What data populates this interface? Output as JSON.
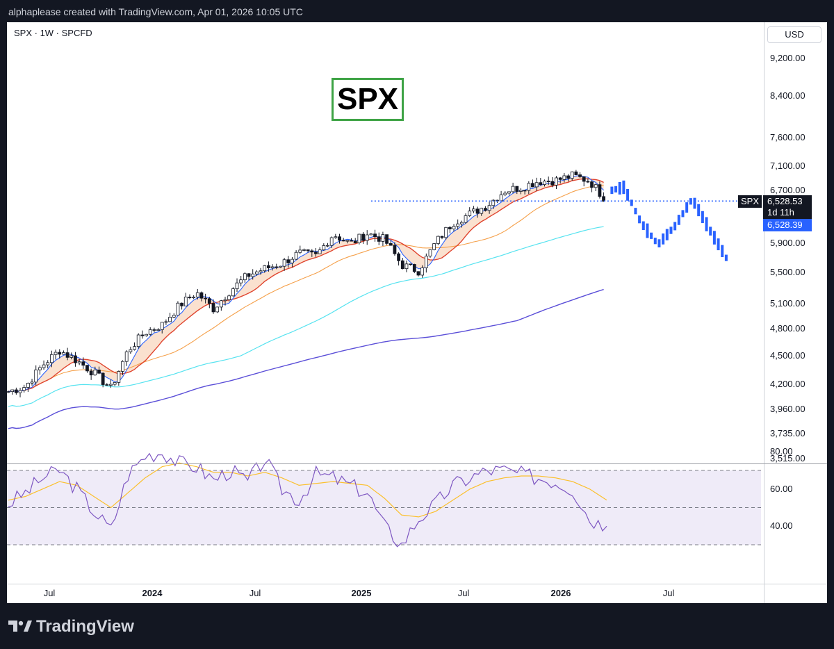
{
  "header": {
    "caption": "alphaplease created with TradingView.com, Apr 01, 2026 10:05 UTC"
  },
  "chart_header": {
    "symbol": "SPX · 1W · SPCFD",
    "currency": "USD"
  },
  "overlay_title": "SPX",
  "price_axis": [
    "9,200.00",
    "8,400.00",
    "7,600.00",
    "7,100.00",
    "6,700.00",
    "5,900.00",
    "5,500.00",
    "5,100.00",
    "4,800.00",
    "4,500.00",
    "4,200.00",
    "3,960.00",
    "3,735.00",
    "3,515.00"
  ],
  "rsi_axis": [
    "80.00",
    "60.00",
    "40.00"
  ],
  "time_axis": [
    {
      "label": "Jul",
      "bold": false
    },
    {
      "label": "2024",
      "bold": true
    },
    {
      "label": "Jul",
      "bold": false
    },
    {
      "label": "2025",
      "bold": true
    },
    {
      "label": "Jul",
      "bold": false
    },
    {
      "label": "2026",
      "bold": true
    },
    {
      "label": "Jul",
      "bold": false
    }
  ],
  "last_price": {
    "symbol": "SPX",
    "value": "6,528.53",
    "countdown": "1d 11h",
    "blue_value": "6,528.39"
  },
  "footer": {
    "brand": "TradingView"
  },
  "colors": {
    "up": "#ffffff",
    "down": "#131722",
    "ma_fast": "#2962ff",
    "ma_mid": "#e0452f",
    "ma_slow": "#f5a04a",
    "ma_cyan": "#57e3f0",
    "ma_long": "#5b4fd8",
    "projection": "#2962ff",
    "rsi": "#7e57c2",
    "rsi_signal": "#fbc02d",
    "box": "#3ea345"
  },
  "chart_data": [
    {
      "type": "candlestick",
      "title": "SPX · 1W · SPCFD",
      "scale": "log",
      "ylim": [
        3515,
        9200
      ],
      "x_range": [
        "2023-04",
        "2026-11"
      ],
      "grid": false,
      "ohlc_weekly_sampled": [
        {
          "date": "2023-04",
          "close": 4130
        },
        {
          "date": "2023-05",
          "close": 4180
        },
        {
          "date": "2023-06",
          "close": 4400
        },
        {
          "date": "2023-07",
          "close": 4560
        },
        {
          "date": "2023-08",
          "close": 4450
        },
        {
          "date": "2023-09",
          "close": 4320
        },
        {
          "date": "2023-10",
          "close": 4160
        },
        {
          "date": "2023-11",
          "close": 4560
        },
        {
          "date": "2023-12",
          "close": 4760
        },
        {
          "date": "2024-01",
          "close": 4850
        },
        {
          "date": "2024-02",
          "close": 5080
        },
        {
          "date": "2024-03",
          "close": 5240
        },
        {
          "date": "2024-04",
          "close": 5040
        },
        {
          "date": "2024-05",
          "close": 5270
        },
        {
          "date": "2024-06",
          "close": 5460
        },
        {
          "date": "2024-07",
          "close": 5550
        },
        {
          "date": "2024-08",
          "close": 5620
        },
        {
          "date": "2024-09",
          "close": 5760
        },
        {
          "date": "2024-10",
          "close": 5720
        },
        {
          "date": "2024-11",
          "close": 6030
        },
        {
          "date": "2024-12",
          "close": 5890
        },
        {
          "date": "2025-01",
          "close": 6040
        },
        {
          "date": "2025-02",
          "close": 5950
        },
        {
          "date": "2025-03",
          "close": 5600
        },
        {
          "date": "2025-04",
          "close": 5520
        },
        {
          "date": "2025-05",
          "close": 5910
        },
        {
          "date": "2025-06",
          "close": 6200
        },
        {
          "date": "2025-07",
          "close": 6330
        },
        {
          "date": "2025-08",
          "close": 6460
        },
        {
          "date": "2025-09",
          "close": 6690
        },
        {
          "date": "2025-10",
          "close": 6750
        },
        {
          "date": "2025-11",
          "close": 6850
        },
        {
          "date": "2025-12",
          "close": 6860
        },
        {
          "date": "2026-01",
          "close": 6940
        },
        {
          "date": "2026-02",
          "close": 6850
        },
        {
          "date": "2026-03",
          "close": 6530
        }
      ],
      "moving_averages": [
        {
          "name": "",
          "color": "#2962ff",
          "last": 6750
        },
        {
          "name": "",
          "color": "#e0452f",
          "last": 6820
        },
        {
          "name": "",
          "color": "#f5a04a",
          "last": 6560
        },
        {
          "name": "",
          "color": "#57e3f0",
          "last": 6130
        },
        {
          "name": "",
          "color": "#5b4fd8",
          "last": 5450
        }
      ],
      "projection_path": [
        {
          "date": "2026-04",
          "value": 6750
        },
        {
          "date": "2026-05",
          "value": 6200
        },
        {
          "date": "2026-06",
          "value": 5880
        },
        {
          "date": "2026-07",
          "value": 6150
        },
        {
          "date": "2026-08",
          "value": 6560
        },
        {
          "date": "2026-09",
          "value": 6100
        },
        {
          "date": "2026-10",
          "value": 5690
        }
      ],
      "horizontal_level": 6528.53
    },
    {
      "type": "line",
      "title": "",
      "ylim": [
        25,
        85
      ],
      "levels": [
        70,
        50,
        30
      ],
      "series": [
        {
          "name": "",
          "values": [
            52,
            58,
            66,
            70,
            60,
            48,
            38,
            68,
            78,
            80,
            74,
            72,
            65,
            70,
            64,
            76,
            60,
            54,
            68,
            66,
            62,
            58,
            40,
            30,
            44,
            52,
            62,
            66,
            70,
            70,
            68,
            66,
            64,
            60,
            44,
            40
          ]
        },
        {
          "name": "",
          "values": [
            54,
            56,
            60,
            64,
            62,
            56,
            50,
            58,
            66,
            72,
            74,
            72,
            69,
            69,
            67,
            69,
            66,
            62,
            63,
            64,
            63,
            62,
            55,
            46,
            45,
            48,
            54,
            60,
            64,
            66,
            67,
            67,
            66,
            64,
            60,
            54
          ]
        }
      ]
    }
  ]
}
